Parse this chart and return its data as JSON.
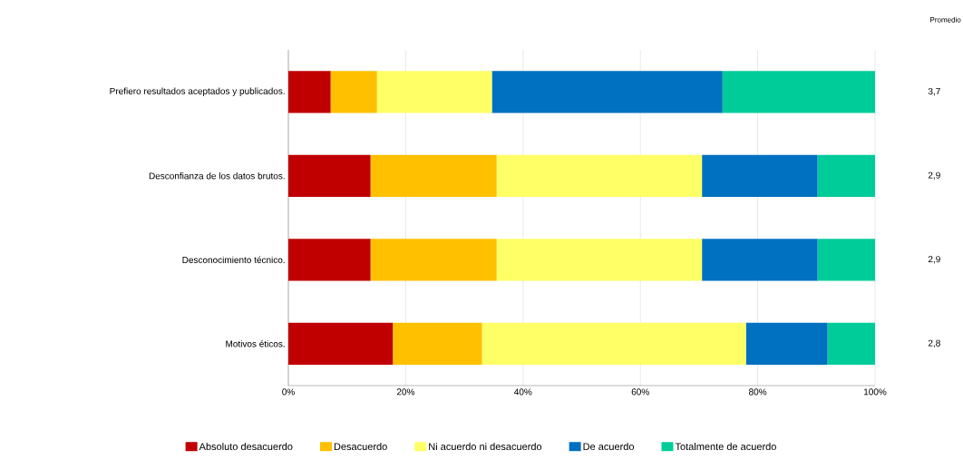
{
  "chart_data": {
    "type": "bar",
    "orientation": "horizontal",
    "stacked": true,
    "categories": [
      "Prefiero resultados aceptados y publicados.",
      "Desconfianza de los datos brutos.",
      "Desconocimiento técnico.",
      "Motivos éticos."
    ],
    "series": [
      {
        "name": "Absoluto desacuerdo",
        "color": "#c00000",
        "values": [
          7.2,
          14.0,
          14.0,
          17.8
        ]
      },
      {
        "name": "Desacuerdo",
        "color": "#ffc000",
        "values": [
          7.9,
          21.5,
          21.5,
          15.2
        ]
      },
      {
        "name": "Ni acuerdo ni desacuerdo",
        "color": "#ffff66",
        "values": [
          19.6,
          35.0,
          35.0,
          45.0
        ]
      },
      {
        "name": "De acuerdo",
        "color": "#0070c0",
        "values": [
          39.3,
          19.7,
          19.7,
          13.9
        ]
      },
      {
        "name": "Totalmente de acuerdo",
        "color": "#00cc99",
        "values": [
          26.0,
          9.8,
          9.8,
          8.1
        ]
      }
    ],
    "xlim": [
      0,
      100
    ],
    "xticks": [
      {
        "value": 0,
        "label": "0%"
      },
      {
        "value": 20,
        "label": "20%"
      },
      {
        "value": 40,
        "label": "40%"
      },
      {
        "value": 60,
        "label": "60%"
      },
      {
        "value": 80,
        "label": "80%"
      },
      {
        "value": 100,
        "label": "100%"
      }
    ],
    "grid": "x",
    "legend": "bottom",
    "annotations": [
      "Promedio",
      "3,7",
      "2,9",
      "2,9",
      "2,8"
    ]
  }
}
